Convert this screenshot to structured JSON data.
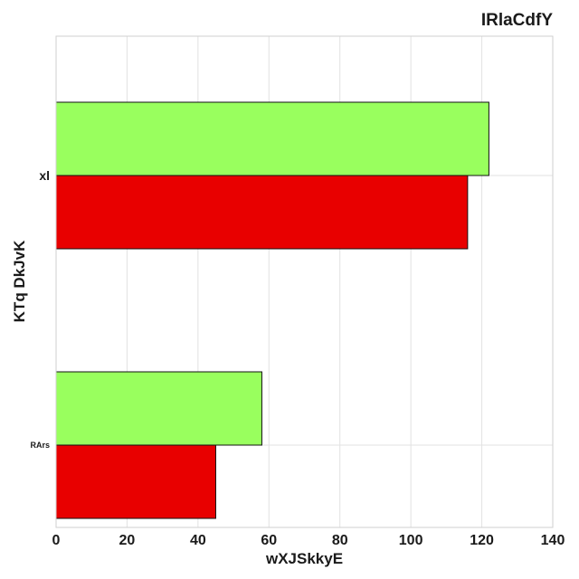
{
  "chart_data": {
    "type": "bar",
    "orientation": "horizontal",
    "title": "IRlaCdfY",
    "xlabel": "wXJSkkyE",
    "ylabel": "KTq DkJvK",
    "categories": [
      "xl",
      "RArs"
    ],
    "series": [
      {
        "color": "#99ff5e",
        "values": [
          122,
          58
        ]
      },
      {
        "color": "#e80000",
        "values": [
          116,
          45
        ]
      }
    ],
    "xlim": [
      0,
      140
    ],
    "xticks": [
      "0",
      "20",
      "40",
      "60",
      "80",
      "100",
      "120",
      "140"
    ],
    "grid": true,
    "legend": "none"
  }
}
